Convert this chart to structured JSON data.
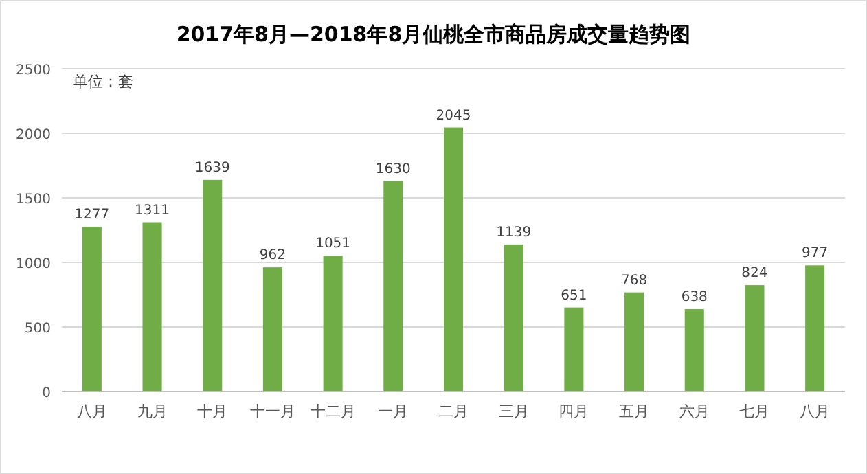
{
  "chart_data": {
    "type": "bar",
    "title": "2017年8月—2018年8月仙桃全市商品房成交量趋势图",
    "categories": [
      "八月",
      "九月",
      "十月",
      "十一月",
      "十二月",
      "一月",
      "二月",
      "三月",
      "四月",
      "五月",
      "六月",
      "七月",
      "八月"
    ],
    "values": [
      1277,
      1311,
      1639,
      962,
      1051,
      1630,
      2045,
      1139,
      651,
      768,
      638,
      824,
      977
    ],
    "color": "#70ad47",
    "ylim": [
      0,
      2500
    ],
    "yticks": [
      0,
      500,
      1000,
      1500,
      2000,
      2500
    ],
    "grid": "y",
    "data_labels": true,
    "annotations": [
      "单位：套"
    ]
  }
}
